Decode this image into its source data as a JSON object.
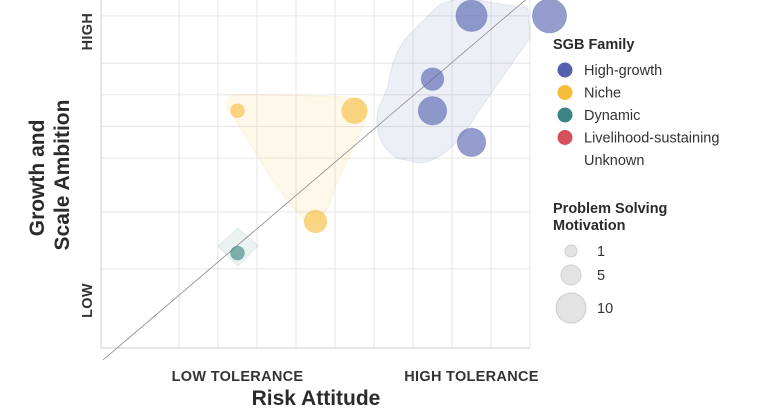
{
  "chart_data": {
    "type": "scatter",
    "xlabel": "Risk Attitude",
    "ylabel_lines": [
      "Growth and",
      "Scale Ambition"
    ],
    "xlim": [
      0,
      11
    ],
    "ylim": [
      0,
      11
    ],
    "x_tick_labels": [
      {
        "x": 3.5,
        "text": "LOW TOLERANCE"
      },
      {
        "x": 9.5,
        "text": "HIGH TOLERANCE"
      }
    ],
    "y_tick_labels": [
      {
        "y": 1.5,
        "text": "LOW"
      },
      {
        "y": 10.0,
        "text": "HIGH"
      }
    ],
    "grid": true,
    "reference_line": "diagonal",
    "legend_position": "right",
    "color_legend": {
      "title": "SGB Family",
      "items": [
        {
          "name": "High-growth",
          "color": "#5361ae"
        },
        {
          "name": "Niche",
          "color": "#f6bd3b"
        },
        {
          "name": "Dynamic",
          "color": "#3c8582"
        },
        {
          "name": "Livelihood-sustaining",
          "color": "#d4505c"
        },
        {
          "name": "Unknown",
          "color": null
        }
      ]
    },
    "size_legend": {
      "title_lines": [
        "Problem Solving",
        "Motivation"
      ],
      "items": [
        {
          "label": "1",
          "value": 1
        },
        {
          "label": "5",
          "value": 5
        },
        {
          "label": "10",
          "value": 10
        }
      ]
    },
    "series": [
      {
        "name": "High-growth",
        "color": "#5361ae",
        "points": [
          {
            "x": 9.5,
            "y": 10.5,
            "size": 8
          },
          {
            "x": 11.5,
            "y": 10.5,
            "size": 9
          },
          {
            "x": 8.5,
            "y": 8.5,
            "size": 5
          },
          {
            "x": 8.5,
            "y": 7.5,
            "size": 7
          },
          {
            "x": 9.5,
            "y": 6.5,
            "size": 7
          }
        ]
      },
      {
        "name": "Niche",
        "color": "#f6bd3b",
        "points": [
          {
            "x": 3.5,
            "y": 7.5,
            "size": 2
          },
          {
            "x": 6.5,
            "y": 7.5,
            "size": 6
          },
          {
            "x": 5.5,
            "y": 4.0,
            "size": 5
          }
        ]
      },
      {
        "name": "Dynamic",
        "color": "#3c8582",
        "points": [
          {
            "x": 3.5,
            "y": 3.0,
            "size": 2
          }
        ]
      }
    ]
  }
}
